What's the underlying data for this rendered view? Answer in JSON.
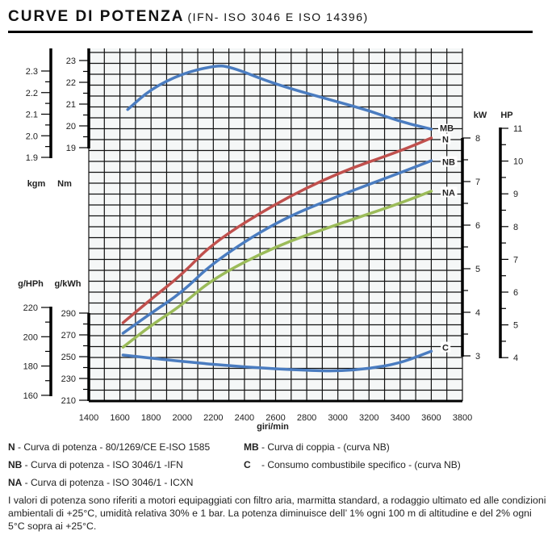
{
  "title": {
    "main": "CURVE DI POTENZA",
    "sub": "(IFN- ISO 3046 E ISO 14396)"
  },
  "chart_data": {
    "type": "line",
    "xlabel": "giri/min",
    "xlim": [
      1400,
      3800
    ],
    "xticks": [
      1400,
      1600,
      1800,
      2000,
      2200,
      2400,
      2600,
      2800,
      3000,
      3200,
      3400,
      3600,
      3800
    ],
    "grid": true,
    "axes": {
      "kgm": {
        "label": "kgm",
        "ticks": [
          "2.3",
          "2.2",
          "2.1",
          "2.0",
          "1.9"
        ]
      },
      "Nm": {
        "label": "Nm",
        "ticks": [
          "23",
          "22",
          "21",
          "20",
          "19"
        ],
        "range": [
          19,
          23.5
        ]
      },
      "g_HPh": {
        "label": "g/HPh",
        "ticks": [
          "220",
          "200",
          "180",
          "160"
        ]
      },
      "g_kWh": {
        "label": "g/kWh",
        "ticks": [
          "290",
          "270",
          "250",
          "230",
          "210"
        ],
        "range": [
          210,
          290
        ]
      },
      "kW": {
        "label": "kW",
        "ticks": [
          "8",
          "7",
          "6",
          "5",
          "4",
          "3"
        ],
        "range": [
          3,
          8
        ]
      },
      "HP": {
        "label": "HP",
        "ticks": [
          "11",
          "10",
          "9",
          "8",
          "7",
          "6",
          "5",
          "4"
        ],
        "range": [
          4,
          11
        ]
      }
    },
    "series": [
      {
        "name": "MB",
        "axis": "Nm",
        "color": "#4a7cc0",
        "x": [
          1650,
          1800,
          2000,
          2200,
          2300,
          2600,
          3000,
          3200,
          3400,
          3600
        ],
        "y": [
          20.75,
          21.7,
          22.4,
          22.75,
          22.75,
          21.9,
          21.1,
          20.7,
          20.2,
          19.85
        ]
      },
      {
        "name": "N",
        "axis": "kW",
        "color": "#c0504d",
        "x": [
          1620,
          1800,
          2000,
          2200,
          2600,
          3000,
          3400,
          3600
        ],
        "y": [
          3.76,
          4.3,
          4.87,
          5.6,
          6.5,
          7.2,
          7.7,
          8.0
        ]
      },
      {
        "name": "NB",
        "axis": "kW",
        "color": "#4a7cc0",
        "x": [
          1620,
          1800,
          2000,
          2200,
          2600,
          3000,
          3400,
          3600
        ],
        "y": [
          3.52,
          3.98,
          4.46,
          5.15,
          6.07,
          6.67,
          7.2,
          7.48
        ]
      },
      {
        "name": "NA",
        "axis": "kW",
        "color": "#9bbb59",
        "x": [
          1620,
          1800,
          2000,
          2200,
          2600,
          3000,
          3400,
          3600
        ],
        "y": [
          3.2,
          3.7,
          4.17,
          4.78,
          5.52,
          6.02,
          6.5,
          6.78
        ]
      },
      {
        "name": "C",
        "axis": "g_kWh",
        "color": "#4a7cc0",
        "x": [
          1620,
          2000,
          2400,
          2800,
          3000,
          3200,
          3400,
          3600
        ],
        "y": [
          251.5,
          245.5,
          240.4,
          237.4,
          236.7,
          239,
          244,
          255
        ]
      }
    ]
  },
  "legend": [
    {
      "key": "N",
      "text": " - Curva di potenza - 80/1269/CE E-ISO 1585"
    },
    {
      "key": "NB",
      "text": " - Curva di potenza  - ISO 3046/1 -IFN"
    },
    {
      "key": "NA",
      "text": " - Curva di potenza  - ISO 3046/1 - ICXN"
    },
    {
      "key": "MB",
      "text": " - Curva di coppia - (curva NB)"
    },
    {
      "key": "C",
      "text": "    - Consumo combustibile specifico - (curva NB)"
    }
  ],
  "note": "I valori di potenza sono riferiti a motori equipaggiati con filtro aria, marmitta standard, a rodaggio ultimato ed alle condizioni ambientali di +25°C, umidità relativa 30% e 1 bar. La potenza diminuisce dell’ 1% ogni 100 m di altitudine e del 2% ogni 5°C sopra ai +25°C."
}
